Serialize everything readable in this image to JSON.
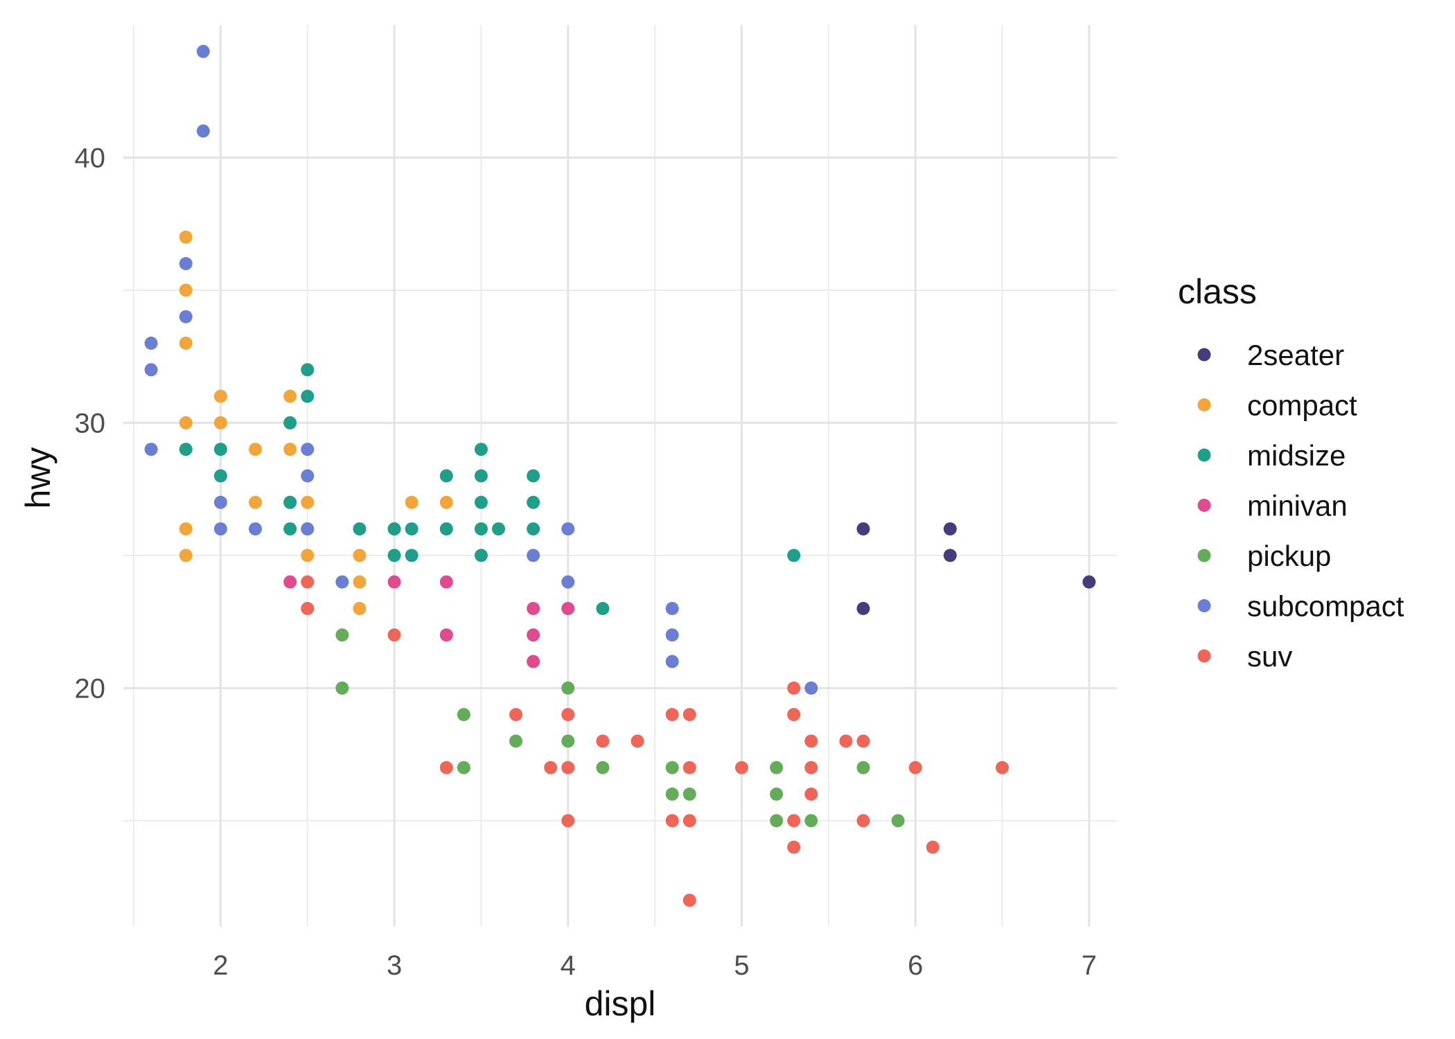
{
  "chart_data": {
    "type": "scatter",
    "xlabel": "displ",
    "ylabel": "hwy",
    "xlim": [
      1.44,
      7.16
    ],
    "ylim": [
      11,
      45
    ],
    "x_ticks": [
      2,
      3,
      4,
      5,
      6,
      7
    ],
    "x_tick_labels": [
      "2",
      "3",
      "4",
      "5",
      "6",
      "7"
    ],
    "x_minor_ticks": [
      1.5,
      2.5,
      3.5,
      4.5,
      5.5,
      6.5
    ],
    "y_ticks": [
      20,
      30,
      40
    ],
    "y_tick_labels": [
      "20",
      "30",
      "40"
    ],
    "y_minor_ticks": [
      15,
      25,
      35
    ],
    "grid": true,
    "legend": {
      "title": "class",
      "position": "right"
    },
    "series": [
      {
        "name": "2seater",
        "color": "#473c7b",
        "points": [
          [
            5.7,
            26
          ],
          [
            5.7,
            23
          ],
          [
            6.2,
            26
          ],
          [
            6.2,
            25
          ],
          [
            7.0,
            24
          ]
        ]
      },
      {
        "name": "compact",
        "color": "#f2a53a",
        "points": [
          [
            1.8,
            37
          ],
          [
            1.8,
            35
          ],
          [
            1.8,
            33
          ],
          [
            1.8,
            30
          ],
          [
            1.8,
            26
          ],
          [
            1.8,
            25
          ],
          [
            2.0,
            31
          ],
          [
            2.0,
            30
          ],
          [
            2.2,
            29
          ],
          [
            2.2,
            27
          ],
          [
            2.4,
            31
          ],
          [
            2.4,
            29
          ],
          [
            2.4,
            27
          ],
          [
            2.5,
            27
          ],
          [
            2.5,
            26
          ],
          [
            2.5,
            25
          ],
          [
            2.8,
            25
          ],
          [
            2.8,
            24
          ],
          [
            2.8,
            23
          ],
          [
            3.0,
            26
          ],
          [
            3.1,
            27
          ],
          [
            3.3,
            27
          ]
        ]
      },
      {
        "name": "midsize",
        "color": "#1f9e89",
        "points": [
          [
            1.8,
            29
          ],
          [
            2.0,
            29
          ],
          [
            2.0,
            28
          ],
          [
            2.4,
            30
          ],
          [
            2.4,
            27
          ],
          [
            2.4,
            26
          ],
          [
            2.5,
            32
          ],
          [
            2.5,
            31
          ],
          [
            2.8,
            26
          ],
          [
            3.0,
            26
          ],
          [
            3.0,
            25
          ],
          [
            3.1,
            26
          ],
          [
            3.1,
            25
          ],
          [
            3.3,
            28
          ],
          [
            3.3,
            26
          ],
          [
            3.5,
            29
          ],
          [
            3.5,
            28
          ],
          [
            3.5,
            27
          ],
          [
            3.5,
            26
          ],
          [
            3.5,
            25
          ],
          [
            3.6,
            26
          ],
          [
            3.8,
            28
          ],
          [
            3.8,
            27
          ],
          [
            3.8,
            26
          ],
          [
            4.2,
            23
          ],
          [
            5.3,
            25
          ]
        ]
      },
      {
        "name": "minivan",
        "color": "#df4b8c",
        "points": [
          [
            2.4,
            24
          ],
          [
            3.0,
            24
          ],
          [
            3.3,
            24
          ],
          [
            3.3,
            22
          ],
          [
            3.8,
            23
          ],
          [
            3.8,
            22
          ],
          [
            3.8,
            21
          ],
          [
            4.0,
            23
          ]
        ]
      },
      {
        "name": "pickup",
        "color": "#64ab5a",
        "points": [
          [
            2.7,
            22
          ],
          [
            2.7,
            20
          ],
          [
            3.4,
            19
          ],
          [
            3.4,
            17
          ],
          [
            3.7,
            18
          ],
          [
            4.0,
            20
          ],
          [
            4.0,
            18
          ],
          [
            4.2,
            17
          ],
          [
            4.6,
            17
          ],
          [
            4.6,
            16
          ],
          [
            4.7,
            16
          ],
          [
            5.2,
            17
          ],
          [
            5.2,
            16
          ],
          [
            5.2,
            15
          ],
          [
            5.4,
            15
          ],
          [
            5.7,
            17
          ],
          [
            5.9,
            15
          ]
        ]
      },
      {
        "name": "subcompact",
        "color": "#6a7fd4",
        "points": [
          [
            1.6,
            33
          ],
          [
            1.6,
            32
          ],
          [
            1.6,
            29
          ],
          [
            1.8,
            36
          ],
          [
            1.8,
            34
          ],
          [
            1.9,
            44
          ],
          [
            1.9,
            41
          ],
          [
            2.0,
            27
          ],
          [
            2.0,
            26
          ],
          [
            2.2,
            26
          ],
          [
            2.5,
            29
          ],
          [
            2.5,
            28
          ],
          [
            2.5,
            26
          ],
          [
            2.7,
            24
          ],
          [
            3.8,
            25
          ],
          [
            4.0,
            26
          ],
          [
            4.0,
            24
          ],
          [
            4.6,
            23
          ],
          [
            4.6,
            22
          ],
          [
            4.6,
            21
          ],
          [
            5.4,
            20
          ]
        ]
      },
      {
        "name": "suv",
        "color": "#ee6657",
        "points": [
          [
            2.5,
            24
          ],
          [
            2.5,
            23
          ],
          [
            3.0,
            22
          ],
          [
            3.3,
            17
          ],
          [
            3.7,
            19
          ],
          [
            3.9,
            17
          ],
          [
            4.0,
            19
          ],
          [
            4.0,
            17
          ],
          [
            4.0,
            15
          ],
          [
            4.2,
            18
          ],
          [
            4.4,
            18
          ],
          [
            4.6,
            19
          ],
          [
            4.6,
            15
          ],
          [
            4.7,
            19
          ],
          [
            4.7,
            17
          ],
          [
            4.7,
            15
          ],
          [
            4.7,
            12
          ],
          [
            5.0,
            17
          ],
          [
            5.3,
            20
          ],
          [
            5.3,
            19
          ],
          [
            5.3,
            15
          ],
          [
            5.3,
            14
          ],
          [
            5.4,
            18
          ],
          [
            5.4,
            17
          ],
          [
            5.4,
            16
          ],
          [
            5.6,
            18
          ],
          [
            5.7,
            18
          ],
          [
            5.7,
            15
          ],
          [
            6.0,
            17
          ],
          [
            6.1,
            14
          ],
          [
            6.5,
            17
          ]
        ]
      }
    ]
  }
}
